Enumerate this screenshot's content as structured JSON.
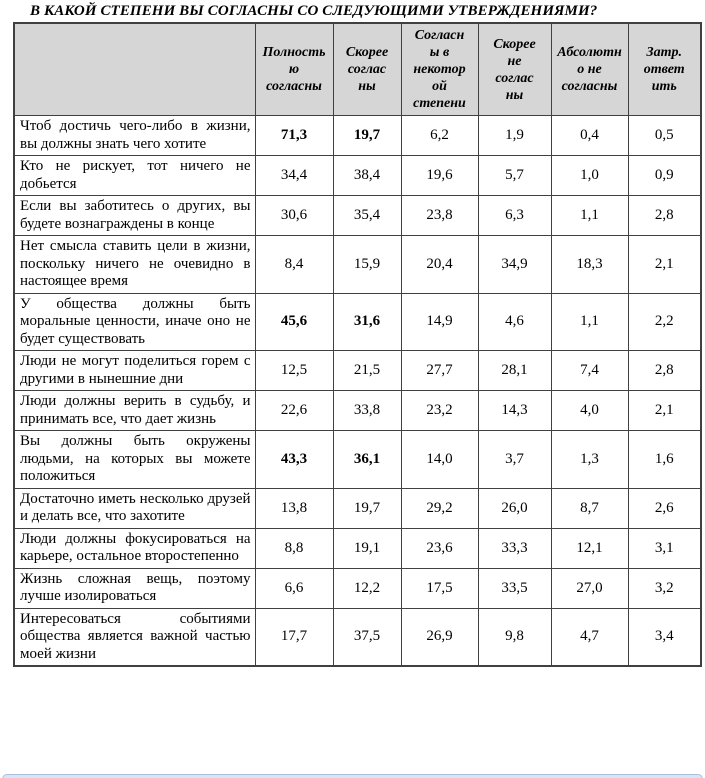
{
  "page": {
    "title": "В КАКОЙ СТЕПЕНИ ВЫ СОГЛАСНЫ СО СЛЕДУЮЩИМИ УТВЕРЖДЕНИЯМИ?"
  },
  "table": {
    "corner_label": "",
    "columns": [
      {
        "label": "Полность\nю\nсогласны",
        "full_label": "Полностью согласны"
      },
      {
        "label": "Скорее\nсоглас\nны",
        "full_label": "Скорее согласны"
      },
      {
        "label": "Согласн\nы в\nнекотор\nой\nстепени",
        "full_label": "Согласны в некоторой степени"
      },
      {
        "label": "Скорее\nне\nсоглас\nны",
        "full_label": "Скорее не согласны"
      },
      {
        "label": "Абсолютн\nо не\nсогласны",
        "full_label": "Абсолютно не согласны"
      },
      {
        "label": "Затр.\nответ\nить",
        "full_label": "Затр. ответить"
      }
    ],
    "rows": [
      {
        "statement": "Чтоб достичь чего-либо в жизни, вы должны знать чего хотите",
        "values": [
          "71,3",
          "19,7",
          "6,2",
          "1,9",
          "0,4",
          "0,5"
        ],
        "bold_value_indexes": [
          0,
          1
        ]
      },
      {
        "statement": "Кто не рискует, тот ничего не добьется",
        "values": [
          "34,4",
          "38,4",
          "19,6",
          "5,7",
          "1,0",
          "0,9"
        ],
        "bold_value_indexes": []
      },
      {
        "statement": "Если вы заботитесь о других, вы будете вознаграждены в конце",
        "values": [
          "30,6",
          "35,4",
          "23,8",
          "6,3",
          "1,1",
          "2,8"
        ],
        "bold_value_indexes": []
      },
      {
        "statement": "Нет смысла ставить цели в жизни, поскольку ничего не очевидно в настоящее время",
        "values": [
          "8,4",
          "15,9",
          "20,4",
          "34,9",
          "18,3",
          "2,1"
        ],
        "bold_value_indexes": []
      },
      {
        "statement": "У общества должны быть моральные ценности, иначе оно не будет существовать",
        "values": [
          "45,6",
          "31,6",
          "14,9",
          "4,6",
          "1,1",
          "2,2"
        ],
        "bold_value_indexes": [
          0,
          1
        ]
      },
      {
        "statement": "Люди не могут поделиться горем с другими в нынешние дни",
        "values": [
          "12,5",
          "21,5",
          "27,7",
          "28,1",
          "7,4",
          "2,8"
        ],
        "bold_value_indexes": []
      },
      {
        "statement": "Люди должны верить в судьбу, и принимать все, что дает жизнь",
        "values": [
          "22,6",
          "33,8",
          "23,2",
          "14,3",
          "4,0",
          "2,1"
        ],
        "bold_value_indexes": []
      },
      {
        "statement": "Вы должны быть окружены людьми, на которых вы можете положиться",
        "values": [
          "43,3",
          "36,1",
          "14,0",
          "3,7",
          "1,3",
          "1,6"
        ],
        "bold_value_indexes": [
          0,
          1
        ]
      },
      {
        "statement": "Достаточно иметь несколько друзей и делать все, что захотите",
        "values": [
          "13,8",
          "19,7",
          "29,2",
          "26,0",
          "8,7",
          "2,6"
        ],
        "bold_value_indexes": []
      },
      {
        "statement": "Люди должны фокусироваться на карьере, остальное второстепенно",
        "values": [
          "8,8",
          "19,1",
          "23,6",
          "33,3",
          "12,1",
          "3,1"
        ],
        "bold_value_indexes": []
      },
      {
        "statement": "Жизнь сложная вещь, поэтому лучше изолироваться",
        "values": [
          "6,6",
          "12,2",
          "17,5",
          "33,5",
          "27,0",
          "3,2"
        ],
        "bold_value_indexes": []
      },
      {
        "statement": "Интересоваться событиями общества является важной частью моей жизни",
        "values": [
          "17,7",
          "37,5",
          "26,9",
          "9,8",
          "4,7",
          "3,4"
        ],
        "bold_value_indexes": []
      }
    ]
  },
  "colors": {
    "header_background": "#d6d6d6",
    "table_border": "#404040",
    "text": "#000000",
    "bottom_bar_fill": "#d9e5f4",
    "bottom_bar_border": "#a9bedb"
  }
}
